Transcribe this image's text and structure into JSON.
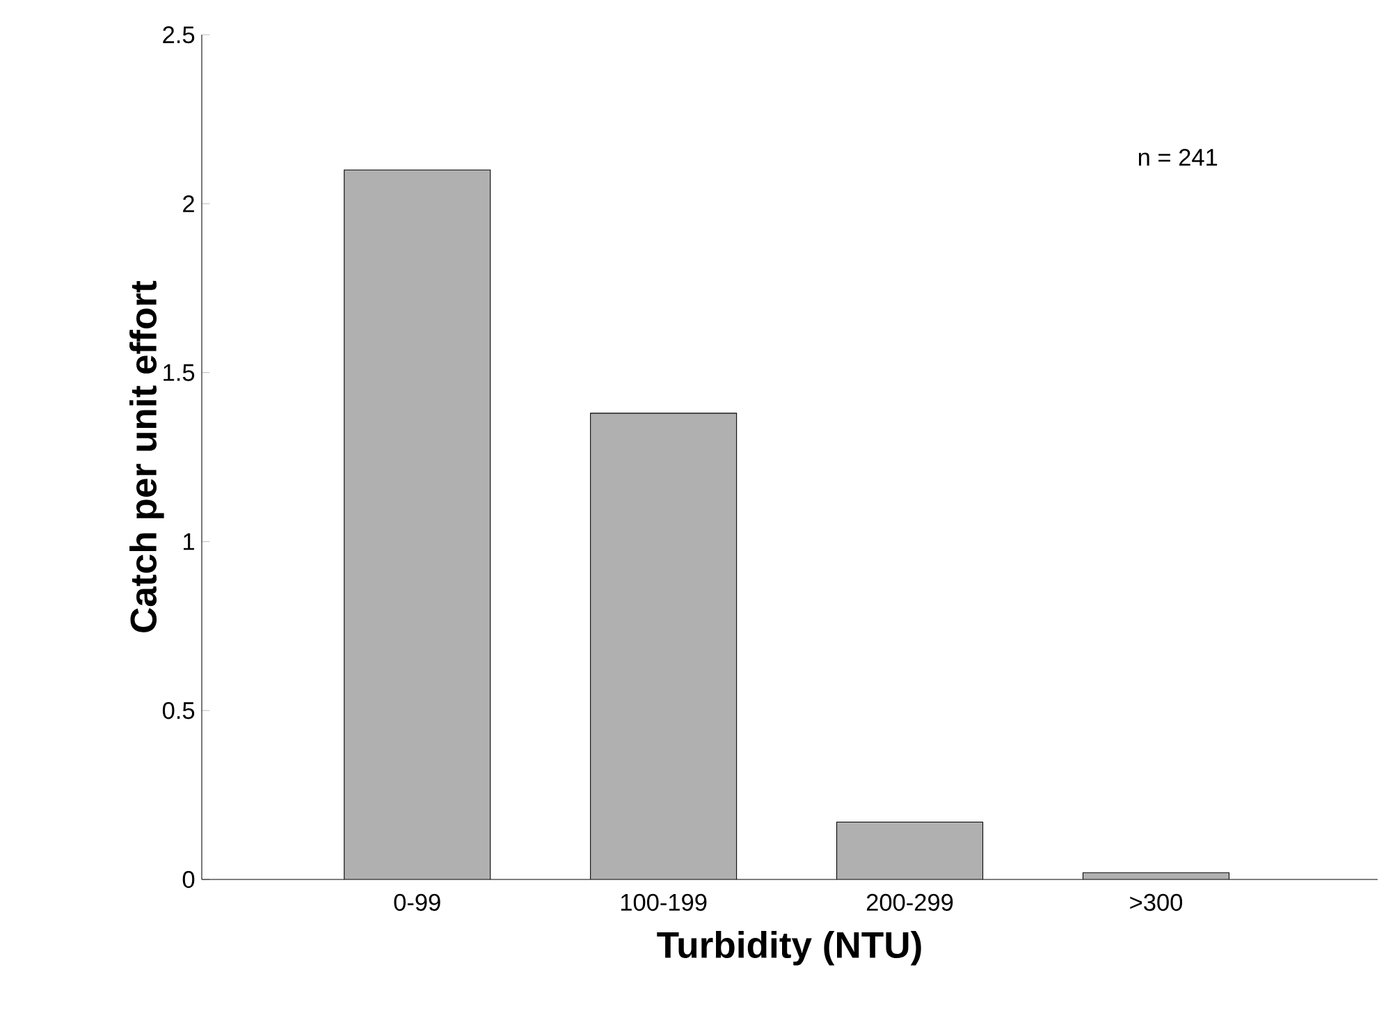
{
  "chart_data": {
    "type": "bar",
    "xlabel": "Turbidity (NTU)",
    "ylabel": "Catch per unit effort",
    "categories": [
      "0-99",
      "100-199",
      "200-299",
      ">300"
    ],
    "values": [
      2.1,
      1.38,
      0.17,
      0.02
    ],
    "color": "#b0b0b0",
    "ylim": [
      0,
      2.5
    ],
    "yticks": [
      0,
      0.5,
      1,
      1.5,
      2,
      2.5
    ],
    "annotations": [
      "n = 241"
    ]
  }
}
